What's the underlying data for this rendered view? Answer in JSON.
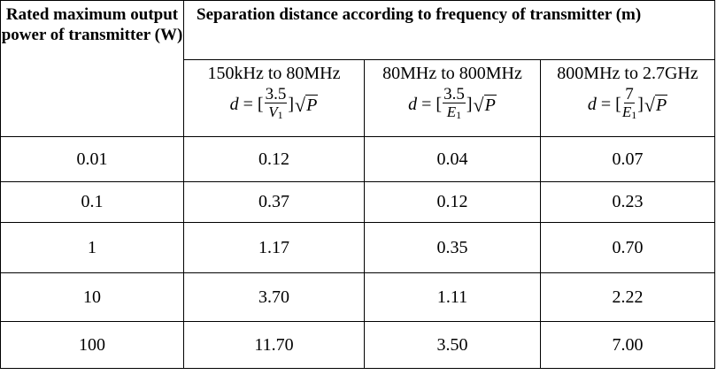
{
  "table": {
    "header_power": "Rated maximum output power of transmitter (W)",
    "header_separation": "Separation distance according to frequency of transmitter (m)",
    "bands": [
      {
        "label": "150kHz to 80MHz",
        "formula_numerator": "3.5",
        "formula_denominator": "V",
        "formula_denominator_sub": "1"
      },
      {
        "label": "80MHz to 800MHz",
        "formula_numerator": "3.5",
        "formula_denominator": "E",
        "formula_denominator_sub": "1"
      },
      {
        "label": "800MHz to 2.7GHz",
        "formula_numerator": "7",
        "formula_denominator": "E",
        "formula_denominator_sub": "1"
      }
    ],
    "formula_lhs": "d",
    "formula_radicand": "P",
    "rows": [
      {
        "power": "0.01",
        "values": [
          "0.12",
          "0.04",
          "0.07"
        ]
      },
      {
        "power": "0.1",
        "values": [
          "0.37",
          "0.12",
          "0.23"
        ]
      },
      {
        "power": "1",
        "values": [
          "1.17",
          "0.35",
          "0.70"
        ]
      },
      {
        "power": "10",
        "values": [
          "3.70",
          "1.11",
          "2.22"
        ]
      },
      {
        "power": "100",
        "values": [
          "11.70",
          "3.50",
          "7.00"
        ]
      }
    ]
  }
}
